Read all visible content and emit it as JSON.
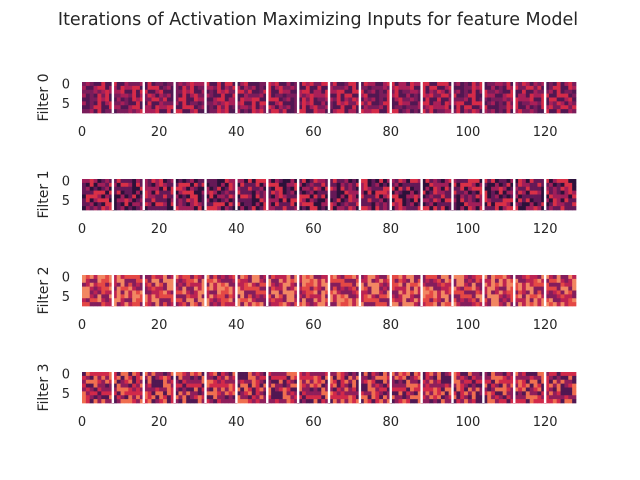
{
  "chart_data": {
    "type": "heatmap",
    "title": "Iterations of Activation Maximizing Inputs for feature Model",
    "colormap": "rocket",
    "grid": false,
    "panels": [
      {
        "ylabel": "Filter 0",
        "xticks": [
          "0",
          "20",
          "40",
          "60",
          "80",
          "100",
          "120"
        ],
        "yticks": [
          "0",
          "5"
        ],
        "xlim": [
          0,
          128
        ],
        "ylim": [
          0,
          8
        ],
        "rows": 8,
        "cols": 128,
        "separator_every": 8,
        "value_range": [
          0.18,
          0.68
        ],
        "color_index": [
          1,
          1,
          3,
          3,
          3,
          1,
          2,
          2,
          0,
          0,
          3,
          3,
          1,
          2,
          1,
          3,
          2,
          0,
          3,
          0,
          0,
          0,
          2,
          1,
          0,
          0,
          1,
          0,
          0,
          3,
          3,
          2,
          1,
          1,
          2,
          3,
          1,
          2,
          3,
          2,
          1,
          3,
          0,
          1,
          0,
          0,
          0,
          2,
          3,
          0,
          3,
          2,
          0,
          1,
          1,
          0,
          3,
          3,
          1,
          0,
          0,
          2,
          2,
          0,
          1,
          2,
          1,
          3,
          3,
          2,
          0,
          3,
          0,
          1,
          1,
          2,
          0,
          2,
          0,
          1,
          3,
          3,
          2,
          3,
          1,
          0,
          0,
          2,
          0,
          2,
          2,
          1,
          1,
          3,
          3,
          1,
          3,
          2,
          1,
          3,
          0,
          0,
          1,
          0,
          3,
          2,
          3,
          2,
          0,
          2,
          0,
          3,
          0,
          0,
          3,
          2,
          2,
          3,
          0,
          3,
          0,
          1,
          0,
          1,
          0,
          0,
          0,
          3
        ]
      },
      {
        "ylabel": "Filter 1",
        "xticks": [
          "0",
          "20",
          "40",
          "60",
          "80",
          "100",
          "120"
        ],
        "yticks": [
          "0",
          "5"
        ],
        "xlim": [
          0,
          128
        ],
        "ylim": [
          0,
          8
        ],
        "rows": 8,
        "cols": 128,
        "separator_every": 8,
        "value_range": [
          0.05,
          0.72
        ],
        "color_index": [
          1,
          0,
          2,
          3,
          3,
          2,
          0,
          0,
          3,
          1,
          2,
          0,
          2,
          1,
          2,
          2,
          0,
          3,
          1,
          3,
          3,
          0,
          2,
          2,
          0,
          0,
          2,
          0,
          3,
          2,
          3,
          1,
          3,
          0,
          1,
          2,
          2,
          2,
          2,
          0,
          1,
          3,
          0,
          0,
          1,
          0,
          2,
          2,
          2,
          3,
          3,
          1,
          1,
          2,
          1,
          2,
          1,
          0,
          1,
          0,
          1,
          1,
          1,
          1,
          3,
          3,
          1,
          3,
          3,
          1,
          1,
          3,
          3,
          2,
          2,
          1,
          3,
          3,
          3,
          3,
          0,
          0,
          1,
          1,
          0,
          2,
          0,
          1,
          3,
          1,
          1,
          2,
          0,
          3,
          1,
          3,
          0,
          2,
          3,
          2,
          1,
          1,
          2,
          2,
          0,
          3,
          1,
          3,
          1,
          0,
          1,
          1,
          3,
          0,
          0,
          1,
          3,
          2,
          0,
          0,
          0,
          1,
          0,
          1,
          1,
          3,
          0,
          2
        ]
      },
      {
        "ylabel": "Filter 2",
        "xticks": [
          "0",
          "20",
          "40",
          "60",
          "80",
          "100",
          "120"
        ],
        "yticks": [
          "0",
          "5"
        ],
        "xlim": [
          0,
          128
        ],
        "ylim": [
          0,
          8
        ],
        "rows": 8,
        "cols": 128,
        "separator_every": 8,
        "value_range": [
          0.32,
          0.92
        ],
        "color_index": [
          2,
          0,
          0,
          1,
          0,
          3,
          1,
          2,
          2,
          1,
          3,
          3,
          1,
          0,
          0,
          1,
          3,
          2,
          1,
          0,
          1,
          3,
          1,
          3,
          3,
          3,
          0,
          2,
          3,
          3,
          1,
          1,
          2,
          0,
          0,
          0,
          0,
          0,
          3,
          3,
          1,
          3,
          3,
          1,
          0,
          3,
          0,
          2,
          2,
          3,
          3,
          3,
          2,
          0,
          1,
          0,
          3,
          1,
          2,
          3,
          1,
          1,
          3,
          1,
          2,
          2,
          1,
          1,
          0,
          3,
          0,
          2,
          3,
          3,
          2,
          3,
          0,
          1,
          0,
          1,
          1,
          3,
          3,
          1,
          2,
          2,
          3,
          2,
          1,
          1,
          0,
          2,
          1,
          3,
          2,
          0,
          0,
          2,
          3,
          0,
          0,
          2,
          2,
          3,
          1,
          0,
          3,
          0,
          2,
          2,
          0,
          1,
          3,
          0,
          0,
          0,
          3,
          0,
          1,
          2,
          2,
          2,
          0,
          1,
          3,
          3,
          2,
          0
        ]
      },
      {
        "ylabel": "Filter 3",
        "xticks": [
          "0",
          "20",
          "40",
          "60",
          "80",
          "100",
          "120"
        ],
        "yticks": [
          "0",
          "5"
        ],
        "xlim": [
          0,
          128
        ],
        "ylim": [
          0,
          8
        ],
        "rows": 8,
        "cols": 128,
        "separator_every": 8,
        "value_range": [
          0.15,
          0.88
        ],
        "color_index": [
          0,
          2,
          3,
          1,
          0,
          3,
          1,
          0,
          2,
          3,
          0,
          2,
          1,
          3,
          3,
          0,
          3,
          2,
          1,
          3,
          1,
          0,
          3,
          2,
          1,
          0,
          0,
          1,
          2,
          2,
          1,
          3,
          3,
          1,
          0,
          1,
          2,
          2,
          1,
          0,
          2,
          1,
          0,
          2,
          1,
          2,
          0,
          3,
          3,
          3,
          2,
          1,
          0,
          0,
          2,
          3,
          1,
          2,
          1,
          0,
          3,
          0,
          3,
          3,
          3,
          1,
          0,
          1,
          0,
          2,
          1,
          2,
          2,
          3,
          2,
          3,
          1,
          3,
          0,
          1,
          3,
          1,
          1,
          3,
          2,
          3,
          1,
          1,
          0,
          1,
          2,
          3,
          3,
          3,
          2,
          2,
          0,
          3,
          0,
          0,
          2,
          2,
          1,
          1,
          0,
          3,
          3,
          1,
          0,
          1,
          0,
          1,
          2,
          2,
          0,
          2,
          1,
          3,
          2,
          0,
          0,
          1,
          2,
          1,
          1,
          3,
          2,
          3
        ]
      }
    ]
  }
}
